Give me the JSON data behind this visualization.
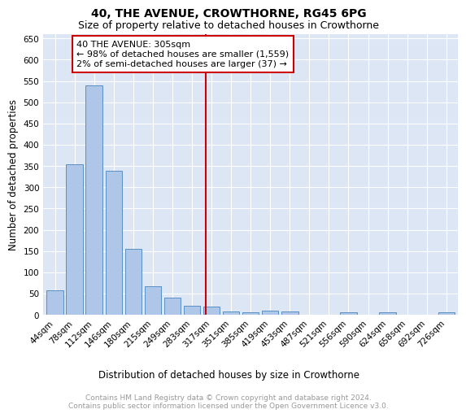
{
  "title": "40, THE AVENUE, CROWTHORNE, RG45 6PG",
  "subtitle": "Size of property relative to detached houses in Crowthorne",
  "xlabel": "Distribution of detached houses by size in Crowthorne",
  "ylabel": "Number of detached properties",
  "bar_labels": [
    "44sqm",
    "78sqm",
    "112sqm",
    "146sqm",
    "180sqm",
    "215sqm",
    "249sqm",
    "283sqm",
    "317sqm",
    "351sqm",
    "385sqm",
    "419sqm",
    "453sqm",
    "487sqm",
    "521sqm",
    "556sqm",
    "590sqm",
    "624sqm",
    "658sqm",
    "692sqm",
    "726sqm"
  ],
  "bar_values": [
    58,
    355,
    540,
    338,
    155,
    68,
    40,
    22,
    20,
    8,
    5,
    10,
    8,
    0,
    0,
    6,
    0,
    5,
    0,
    0,
    6
  ],
  "bar_color": "#aec6e8",
  "bar_edge_color": "#5a8fc2",
  "vline_x": 7.72,
  "vline_color": "#cc0000",
  "annotation_text": "40 THE AVENUE: 305sqm\n← 98% of detached houses are smaller (1,559)\n2% of semi-detached houses are larger (37) →",
  "annotation_box_color": "#ffffff",
  "annotation_box_edge": "#cc0000",
  "ylim": [
    0,
    660
  ],
  "yticks": [
    0,
    50,
    100,
    150,
    200,
    250,
    300,
    350,
    400,
    450,
    500,
    550,
    600,
    650
  ],
  "bg_color": "#dce6f5",
  "footer_text": "Contains HM Land Registry data © Crown copyright and database right 2024.\nContains public sector information licensed under the Open Government Licence v3.0.",
  "title_fontsize": 10,
  "subtitle_fontsize": 9,
  "xlabel_fontsize": 8.5,
  "ylabel_fontsize": 8.5,
  "tick_fontsize": 7.5,
  "annotation_fontsize": 8,
  "footer_fontsize": 6.5
}
